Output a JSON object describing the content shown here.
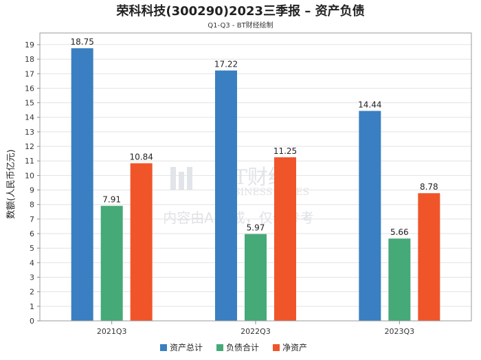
{
  "chart_data": {
    "type": "bar",
    "title": "荣科科技(300290)2023三季报 – 资产负债",
    "subtitle": "Q1-Q3 - BT财经绘制",
    "ylabel": "数额(人民币亿元)",
    "xlabel": "",
    "categories": [
      "2021Q3",
      "2022Q3",
      "2023Q3"
    ],
    "ylim": [
      0,
      19.8
    ],
    "yticks": [
      0,
      1,
      2,
      3,
      4,
      5,
      6,
      7,
      8,
      9,
      10,
      11,
      12,
      13,
      14,
      15,
      16,
      17,
      18,
      19
    ],
    "grid": true,
    "legend_position": "bottom-center",
    "series": [
      {
        "name": "资产总计",
        "color": "#3a7fc1",
        "values": [
          18.75,
          17.22,
          14.44
        ]
      },
      {
        "name": "负债合计",
        "color": "#46a978",
        "values": [
          7.91,
          5.97,
          5.66
        ]
      },
      {
        "name": "净资产",
        "color": "#f0552a",
        "values": [
          10.84,
          11.25,
          8.78
        ]
      }
    ]
  },
  "watermark": {
    "brand": "BT财经",
    "brand_en": "BUSINESS TIMES",
    "notice": "内容由AI生成，仅供参考"
  }
}
